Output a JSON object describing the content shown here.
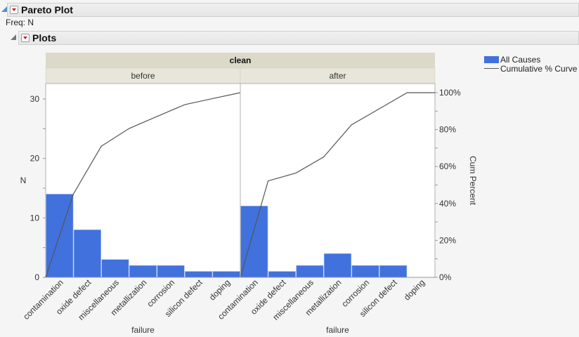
{
  "report": {
    "title": "Pareto Plot",
    "freq_label": "Freq: N",
    "plots_title": "Plots"
  },
  "legend": {
    "items": [
      {
        "label": "All Causes",
        "type": "bar",
        "color": "#4171dd"
      },
      {
        "label": "Cumulative % Curve",
        "type": "line",
        "color": "#555555"
      }
    ]
  },
  "chart_data": {
    "type": "bar",
    "subtype": "pareto",
    "group_header": "clean",
    "panels": [
      {
        "label": "before",
        "categories": [
          "contamination",
          "oxide defect",
          "miscellaneous",
          "metallization",
          "corrosion",
          "silicon defect",
          "doping"
        ],
        "values": [
          14,
          8,
          3,
          2,
          2,
          1,
          1
        ],
        "cumulative_percent": [
          45.2,
          71.0,
          80.6,
          87.1,
          93.5,
          96.8,
          100
        ]
      },
      {
        "label": "after",
        "categories": [
          "contamination",
          "oxide defect",
          "miscellaneous",
          "metallization",
          "corrosion",
          "silicon defect",
          "doping"
        ],
        "values": [
          12,
          1,
          2,
          4,
          2,
          2,
          0
        ],
        "cumulative_percent": [
          52.2,
          56.5,
          65.2,
          82.6,
          91.3,
          100,
          100
        ]
      }
    ],
    "xlabel": "failure",
    "ylabel": "N",
    "y2label": "Cum Percent",
    "yticks": [
      0,
      10,
      20,
      30
    ],
    "y2ticks": [
      "0%",
      "20%",
      "40%",
      "60%",
      "80%",
      "100%"
    ],
    "ylim": [
      0,
      32.6
    ],
    "y2lim": [
      0,
      100
    ],
    "bar_color": "#4171dd",
    "line_color": "#555555"
  }
}
